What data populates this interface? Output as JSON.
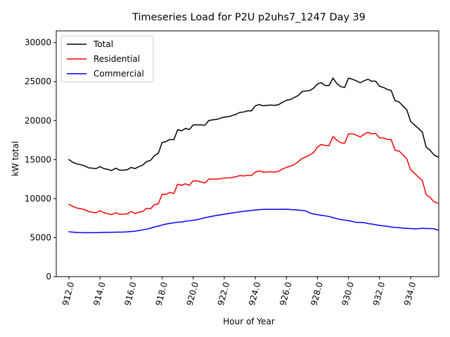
{
  "chart_data": {
    "type": "line",
    "title": "Timeseries Load for P2U p2uhs7_1247  Day 39",
    "xlabel": "Hour of Year",
    "ylabel": "kW total",
    "xlim": [
      911.18,
      935.81
    ],
    "ylim": [
      0,
      31500
    ],
    "xticks": [
      912,
      914,
      916,
      918,
      920,
      922,
      924,
      926,
      928,
      930,
      932,
      934
    ],
    "xtick_labels": [
      "912.0",
      "914.0",
      "916.0",
      "918.0",
      "920.0",
      "922.0",
      "924.0",
      "926.0",
      "928.0",
      "930.0",
      "932.0",
      "934.0"
    ],
    "yticks": [
      0,
      5000,
      10000,
      15000,
      20000,
      25000,
      30000
    ],
    "ytick_labels": [
      "0",
      "5000",
      "10000",
      "15000",
      "20000",
      "25000",
      "30000"
    ],
    "legend_position": "upper-left",
    "x_start": 912.0,
    "x_step": 0.25,
    "series": [
      {
        "name": "Total",
        "color": "#000000",
        "values": [
          15000,
          14650,
          14450,
          14350,
          14200,
          13950,
          13900,
          13850,
          14100,
          13850,
          13750,
          13600,
          13900,
          13650,
          13650,
          13700,
          14000,
          13850,
          14100,
          14300,
          14750,
          14900,
          15500,
          15800,
          17200,
          17300,
          17600,
          17550,
          18850,
          18700,
          19000,
          18850,
          19450,
          19450,
          19450,
          19400,
          20000,
          20100,
          20150,
          20300,
          20450,
          20500,
          20650,
          20800,
          21050,
          21100,
          21250,
          21250,
          21900,
          22050,
          21900,
          21950,
          22000,
          21950,
          22050,
          22350,
          22600,
          22700,
          22950,
          23200,
          23700,
          23800,
          23850,
          24150,
          24700,
          24850,
          24500,
          24500,
          25450,
          24750,
          24350,
          24250,
          25450,
          25300,
          25100,
          24850,
          25100,
          25300,
          25050,
          25050,
          24400,
          24250,
          24000,
          23850,
          22550,
          22400,
          21900,
          21400,
          19900,
          19450,
          19000,
          18550,
          16600,
          16200,
          15600,
          15350
        ]
      },
      {
        "name": "Residential",
        "color": "#ff0000",
        "values": [
          9250,
          9000,
          8800,
          8700,
          8600,
          8350,
          8250,
          8200,
          8450,
          8200,
          8050,
          7950,
          8200,
          8000,
          8000,
          8050,
          8350,
          8100,
          8250,
          8350,
          8750,
          8700,
          9200,
          9350,
          10550,
          10550,
          10800,
          10650,
          11850,
          11700,
          11900,
          11700,
          12300,
          12250,
          12150,
          12000,
          12500,
          12500,
          12500,
          12550,
          12650,
          12650,
          12700,
          12800,
          12950,
          12900,
          13000,
          12950,
          13400,
          13550,
          13400,
          13400,
          13450,
          13400,
          13500,
          13800,
          14000,
          14150,
          14350,
          14700,
          15150,
          15350,
          15600,
          15900,
          16600,
          16950,
          16800,
          16800,
          17950,
          17500,
          17150,
          17100,
          18300,
          18300,
          18150,
          17900,
          18250,
          18500,
          18300,
          18350,
          17800,
          17750,
          17600,
          17550,
          16200,
          16100,
          15650,
          15100,
          13700,
          13250,
          12750,
          12350,
          10500,
          10150,
          9600,
          9400
        ]
      },
      {
        "name": "Commercial",
        "color": "#0000ff",
        "values": [
          5750,
          5700,
          5660,
          5650,
          5630,
          5640,
          5640,
          5630,
          5660,
          5660,
          5680,
          5680,
          5700,
          5700,
          5720,
          5740,
          5780,
          5830,
          5900,
          5990,
          6080,
          6200,
          6380,
          6470,
          6620,
          6740,
          6820,
          6900,
          6980,
          7000,
          7100,
          7150,
          7220,
          7300,
          7420,
          7550,
          7650,
          7750,
          7840,
          7920,
          8000,
          8080,
          8160,
          8240,
          8300,
          8370,
          8430,
          8480,
          8540,
          8580,
          8620,
          8630,
          8630,
          8630,
          8630,
          8630,
          8640,
          8600,
          8570,
          8540,
          8480,
          8420,
          8160,
          8020,
          7940,
          7860,
          7790,
          7700,
          7560,
          7420,
          7320,
          7240,
          7180,
          7080,
          6960,
          6940,
          6930,
          6800,
          6740,
          6660,
          6560,
          6500,
          6460,
          6360,
          6300,
          6280,
          6210,
          6180,
          6160,
          6120,
          6140,
          6200,
          6170,
          6160,
          6140,
          5960
        ]
      }
    ]
  }
}
